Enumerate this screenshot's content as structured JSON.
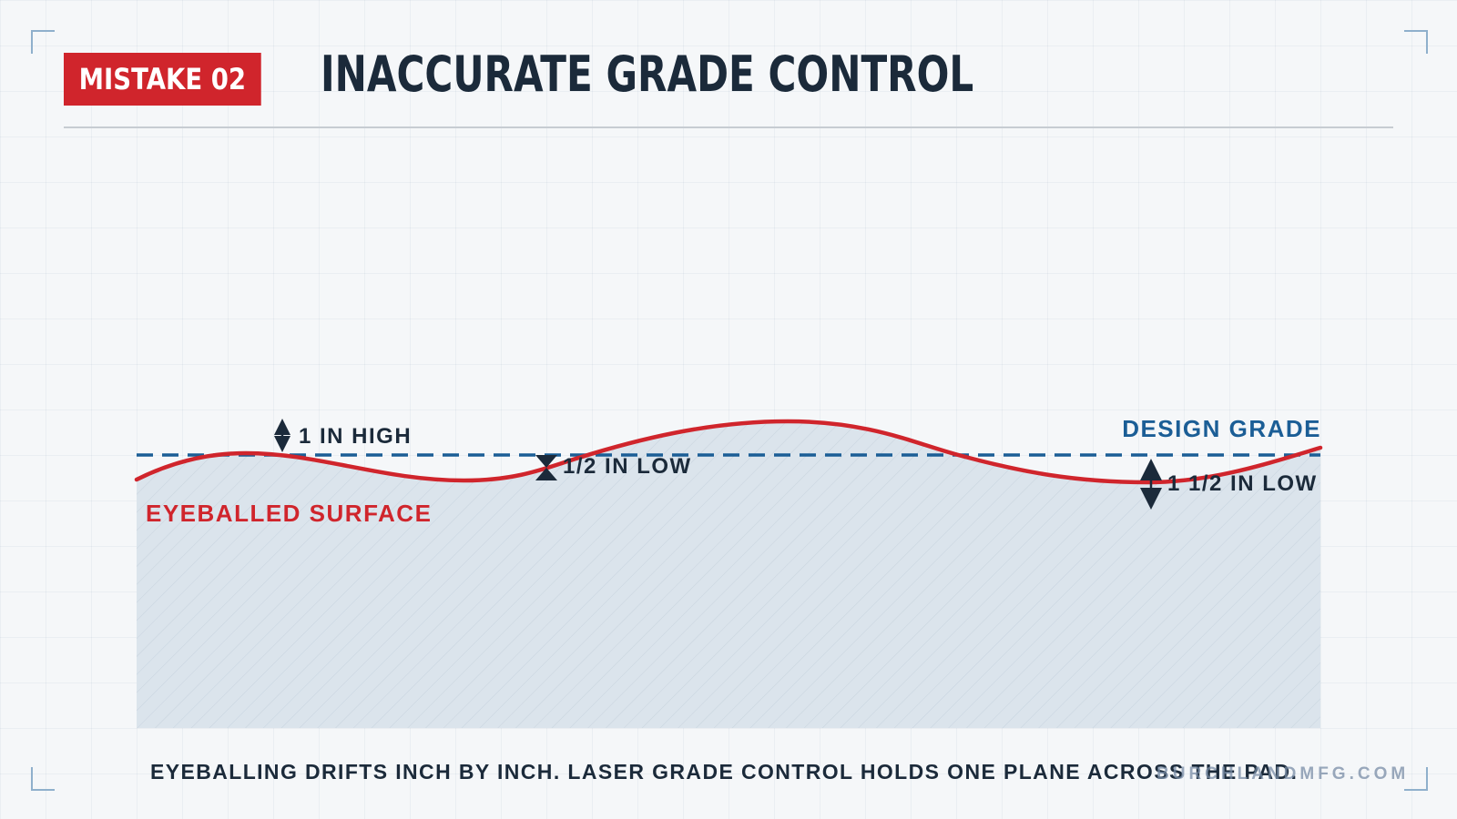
{
  "header": {
    "badge_label": "MISTAKE 02",
    "title": "INACCURATE GRADE CONTROL"
  },
  "diagram": {
    "design_grade_label": "DESIGN GRADE",
    "surface_label": "EYEBALLED SURFACE",
    "annotations": [
      {
        "label": "1 IN HIGH"
      },
      {
        "label": "1/2 IN LOW"
      },
      {
        "label": "1 1/2 IN LOW"
      }
    ],
    "colors": {
      "surface_line": "#d0252c",
      "design_line": "#1b5e96",
      "arrow": "#1b2a3a",
      "fill": "#dbe4ec"
    }
  },
  "caption": "EYEBALLING DRIFTS INCH BY INCH. LASER GRADE CONTROL HOLDS ONE PLANE ACROSS THE PAD.",
  "watermark": "BURCHLANDMFG.COM",
  "colors": {
    "accent_red": "#d0252c",
    "dark_navy": "#1b2a3a",
    "brand_blue": "#1b5e96"
  }
}
